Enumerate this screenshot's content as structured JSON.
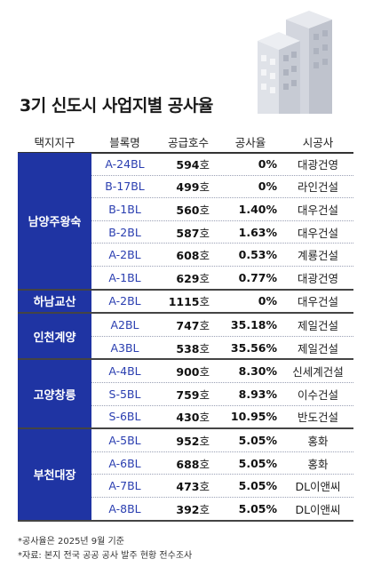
{
  "title": "3기 신도시 사업지별 공사율",
  "headers": [
    "택지지구",
    "블록명",
    "공급호수",
    "공사율",
    "시공사"
  ],
  "unit_suffix": "호",
  "groups": [
    {
      "name": "남양주왕숙",
      "rows": [
        {
          "block": "A-24BL",
          "units": "594",
          "rate": "0%",
          "company": "대광건영"
        },
        {
          "block": "B-17BL",
          "units": "499",
          "rate": "0%",
          "company": "라인건설"
        },
        {
          "block": "B-1BL",
          "units": "560",
          "rate": "1.40%",
          "company": "대우건설"
        },
        {
          "block": "B-2BL",
          "units": "587",
          "rate": "1.63%",
          "company": "대우건설"
        },
        {
          "block": "A-2BL",
          "units": "608",
          "rate": "0.53%",
          "company": "계룡건설"
        },
        {
          "block": "A-1BL",
          "units": "629",
          "rate": "0.77%",
          "company": "대광건영"
        }
      ]
    },
    {
      "name": "하남교산",
      "rows": [
        {
          "block": "A-2BL",
          "units": "1115",
          "rate": "0%",
          "company": "대우건설"
        }
      ]
    },
    {
      "name": "인천계양",
      "rows": [
        {
          "block": "A2BL",
          "units": "747",
          "rate": "35.18%",
          "company": "제일건설"
        },
        {
          "block": "A3BL",
          "units": "538",
          "rate": "35.56%",
          "company": "제일건설"
        }
      ]
    },
    {
      "name": "고양창릉",
      "rows": [
        {
          "block": "A-4BL",
          "units": "900",
          "rate": "8.30%",
          "company": "신세계건설"
        },
        {
          "block": "S-5BL",
          "units": "759",
          "rate": "8.93%",
          "company": "이수건설"
        },
        {
          "block": "S-6BL",
          "units": "430",
          "rate": "10.95%",
          "company": "반도건설"
        }
      ]
    },
    {
      "name": "부천대장",
      "rows": [
        {
          "block": "A-5BL",
          "units": "952",
          "rate": "5.05%",
          "company": "홍화"
        },
        {
          "block": "A-6BL",
          "units": "688",
          "rate": "5.05%",
          "company": "홍화"
        },
        {
          "block": "A-7BL",
          "units": "473",
          "rate": "5.05%",
          "company": "DL이앤씨"
        },
        {
          "block": "A-8BL",
          "units": "392",
          "rate": "5.05%",
          "company": "DL이앤씨"
        }
      ]
    }
  ],
  "footnotes": [
    "*공사율은 2025년 9월 기준",
    "*자료: 본지 전국 공공 공사 발주 현황 전수조사"
  ],
  "colors": {
    "group_bg": "#1f34a3",
    "block_text": "#2a3eb0"
  }
}
